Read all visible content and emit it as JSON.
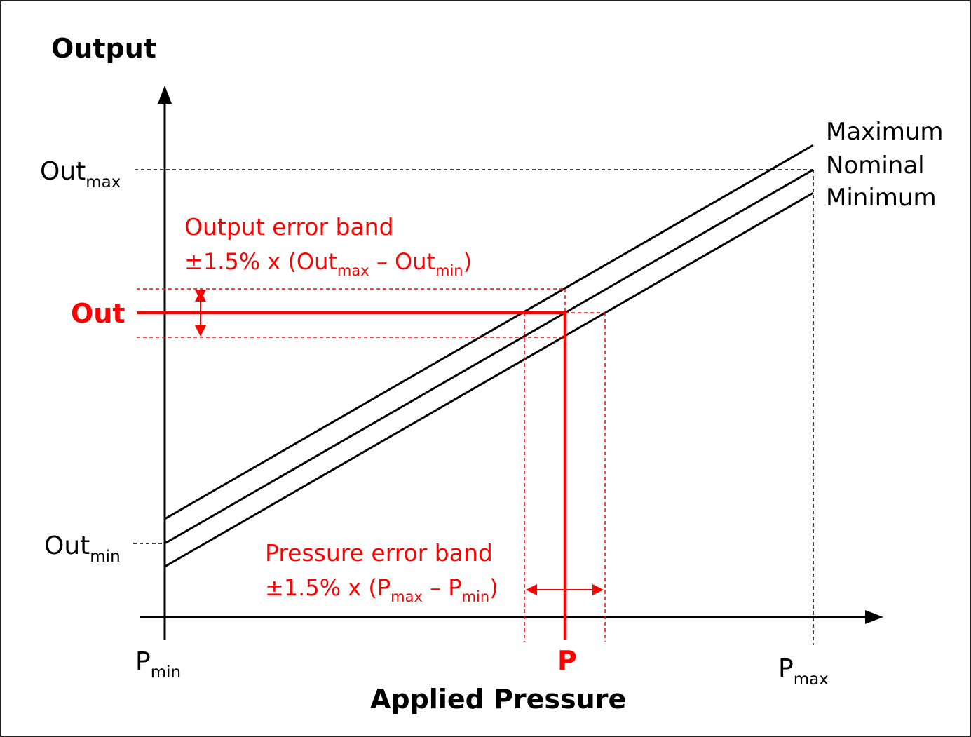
{
  "axes": {
    "y_title": "Output",
    "x_title": "Applied Pressure"
  },
  "y_ticks": {
    "out_max": {
      "base": "Out",
      "sub": "max"
    },
    "out_min": {
      "base": "Out",
      "sub": "min"
    },
    "out": "Out"
  },
  "x_ticks": {
    "p_min": {
      "base": "P",
      "sub": "min"
    },
    "p_max": {
      "base": "P",
      "sub": "max"
    },
    "p": "P"
  },
  "lines": {
    "maximum": "Maximum",
    "nominal": "Nominal",
    "minimum": "Minimum"
  },
  "output_band": {
    "title": "Output error band",
    "formula_prefix": "±1.5% x (",
    "term1_base": "Out",
    "term1_sub": "max",
    "minus": " – ",
    "term2_base": "Out",
    "term2_sub": "min",
    "close": ")"
  },
  "pressure_band": {
    "title": "Pressure error band",
    "formula_prefix": "±1.5% x (",
    "term1_base": "P",
    "term1_sub": "max",
    "minus": " – ",
    "term2_base": "P",
    "term2_sub": "min",
    "close": ")"
  },
  "colors": {
    "ink": "#000000",
    "accent": "#ff0000"
  }
}
